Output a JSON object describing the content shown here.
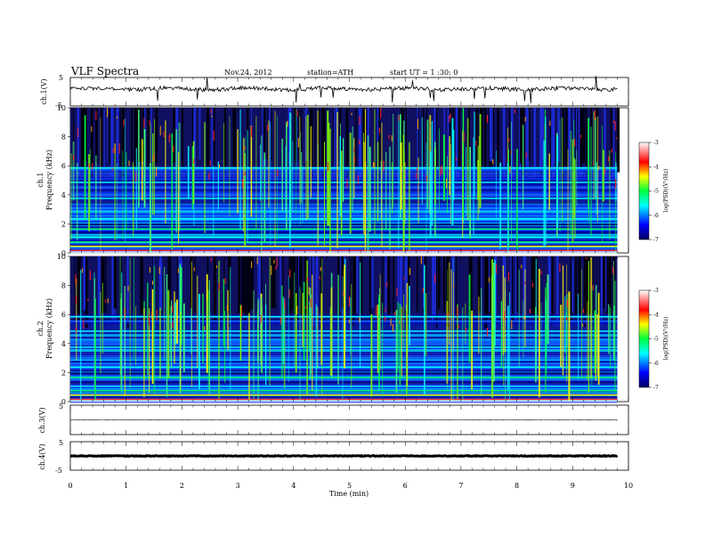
{
  "header": {
    "title": "VLF  Spectra",
    "date": "Nov.24, 2012",
    "station": "station=ATH",
    "start": "start  UT =  1 :30: 0"
  },
  "chart_data": [
    {
      "type": "line",
      "ylabel": "ch.1(V)",
      "ylim": [
        -5,
        5
      ],
      "y_tick_labels": [
        "5",
        "-5"
      ],
      "baseline": 1.0,
      "note": "noisy trace around +1 V with spikes"
    },
    {
      "type": "heatmap",
      "ylabel_channel": "ch.1",
      "ylabel": "Frequency (kHz)",
      "ylim": [
        0,
        10
      ],
      "y_tick_labels": [
        "0",
        "2",
        "4",
        "6",
        "8",
        "10"
      ],
      "colorbar": {
        "label": "log(PSD)(V²/Hz)",
        "range": [
          -7,
          -3
        ],
        "tick_labels": [
          "-3",
          "-4",
          "-5",
          "-6",
          "-7"
        ],
        "colors": [
          "#000080",
          "#0000ff",
          "#00ffff",
          "#00ff00",
          "#ffff00",
          "#ff0000",
          "#ffffff"
        ]
      }
    },
    {
      "type": "heatmap",
      "ylabel_channel": "ch.2",
      "ylabel": "Frequency (kHz)",
      "ylim": [
        0,
        10
      ],
      "y_tick_labels": [
        "0",
        "2",
        "4",
        "6",
        "8",
        "10"
      ],
      "colorbar": {
        "label": "log(PSD)(V²/Hz)",
        "range": [
          -7,
          -3
        ],
        "tick_labels": [
          "-3",
          "-4",
          "-5",
          "-6",
          "-7"
        ],
        "colors": [
          "#000080",
          "#0000ff",
          "#00ffff",
          "#00ff00",
          "#ffff00",
          "#ff0000",
          "#ffffff"
        ]
      }
    },
    {
      "type": "line",
      "ylabel": "ch.3(V)",
      "ylim": [
        -5,
        5
      ],
      "y_tick_labels": [
        "5"
      ],
      "baseline": 0.0,
      "note": "nearly flat trace"
    },
    {
      "type": "line",
      "ylabel": "ch.4(V)",
      "ylim": [
        -5,
        5
      ],
      "y_tick_labels": [
        "5",
        "-5"
      ],
      "baseline": 0.0,
      "note": "thick flat trace"
    }
  ],
  "x_axis": {
    "label": "Time  (min)",
    "range": [
      0,
      10
    ],
    "data_end": 9.8,
    "tick_labels": [
      "0",
      "1",
      "2",
      "3",
      "4",
      "5",
      "6",
      "7",
      "8",
      "9",
      "10"
    ]
  }
}
